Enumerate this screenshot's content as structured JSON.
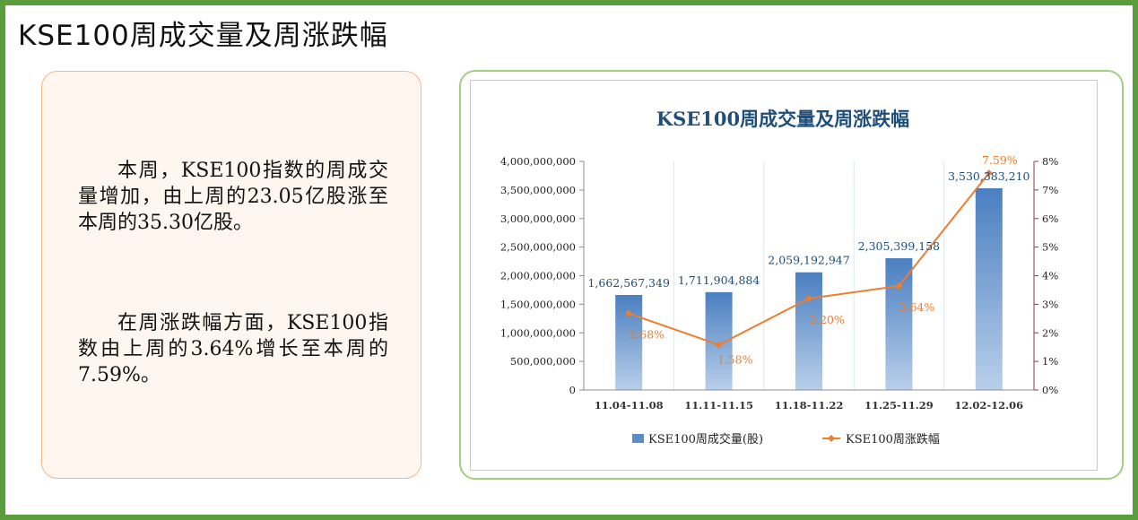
{
  "page": {
    "title": "KSE100周成交量及周涨跌幅",
    "paragraphs": [
      "本周，KSE100指数的周成交量增加，由上周的23.05亿股涨至本周的35.30亿股。",
      "在周涨跌幅方面，KSE100指数由上周的3.64%增长至本周的7.59%。"
    ]
  },
  "chart_data": {
    "type": "bar",
    "title": "KSE100周成交量及周涨跌幅",
    "categories": [
      "11.04-11.08",
      "11.11-11.15",
      "11.18-11.22",
      "11.25-11.29",
      "12.02-12.06"
    ],
    "series": [
      {
        "name": "KSE100周成交量(股)",
        "type": "bar",
        "axis": "left",
        "values": [
          1662567349,
          1711904884,
          2059192947,
          2305399158,
          3530383210
        ],
        "labels": [
          "1,662,567,349",
          "1,711,904,884",
          "2,059,192,947",
          "2,305,399,158",
          "3,530,383,210"
        ],
        "color": "#5b8cc8"
      },
      {
        "name": "KSE100周涨跌幅",
        "type": "line",
        "axis": "right",
        "values": [
          2.68,
          1.58,
          3.2,
          3.64,
          7.59
        ],
        "labels": [
          "2.68%",
          "1.58%",
          "3.20%",
          "3.64%",
          "7.59%"
        ],
        "color": "#ed7d31"
      }
    ],
    "y_left": {
      "range": [
        0,
        4000000000
      ],
      "ticks": [
        "0",
        "500,000,000",
        "1,000,000,000",
        "1,500,000,000",
        "2,000,000,000",
        "2,500,000,000",
        "3,000,000,000",
        "3,500,000,000",
        "4,000,000,000"
      ]
    },
    "y_right": {
      "range": [
        0,
        8
      ],
      "ticks": [
        "0%",
        "1%",
        "2%",
        "3%",
        "4%",
        "5%",
        "6%",
        "7%",
        "8%"
      ]
    },
    "grid": "vertical",
    "legend_position": "bottom",
    "colors": {
      "title": "#1f4e79",
      "right_axis": "#8b3a52",
      "frame": "#5a9e3c"
    }
  }
}
